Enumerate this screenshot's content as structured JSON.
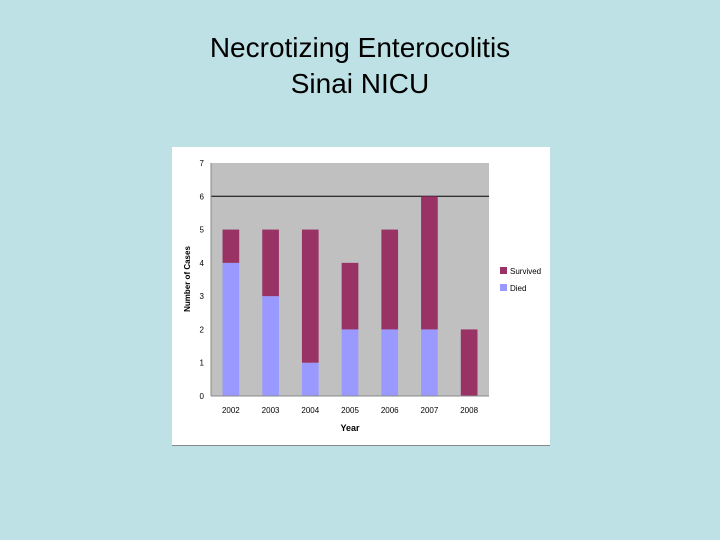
{
  "slide": {
    "title_line1": "Necrotizing Enterocolitis",
    "title_line2": "Sinai NICU"
  },
  "colors": {
    "background": "#bde1e4",
    "plot_area": "#c0c0c0",
    "survived": "#993366",
    "died": "#9999ff"
  },
  "chart_data": {
    "type": "bar",
    "stacked": true,
    "categories": [
      "2002",
      "2003",
      "2004",
      "2005",
      "2006",
      "2007",
      "2008"
    ],
    "series": [
      {
        "name": "Died",
        "values": [
          4,
          3,
          1,
          2,
          2,
          2,
          0
        ],
        "color": "#9999ff"
      },
      {
        "name": "Survived",
        "values": [
          1,
          2,
          4,
          2,
          3,
          4,
          2
        ],
        "color": "#993366"
      }
    ],
    "legend_order": [
      "Survived",
      "Died"
    ],
    "xlabel": "Year",
    "ylabel": "Number of Cases",
    "ylim": [
      0,
      7
    ],
    "yticks": [
      "0",
      "1",
      "2",
      "3",
      "4",
      "5",
      "6",
      "7"
    ],
    "gridlines": [
      6
    ],
    "legend_position": "right"
  }
}
